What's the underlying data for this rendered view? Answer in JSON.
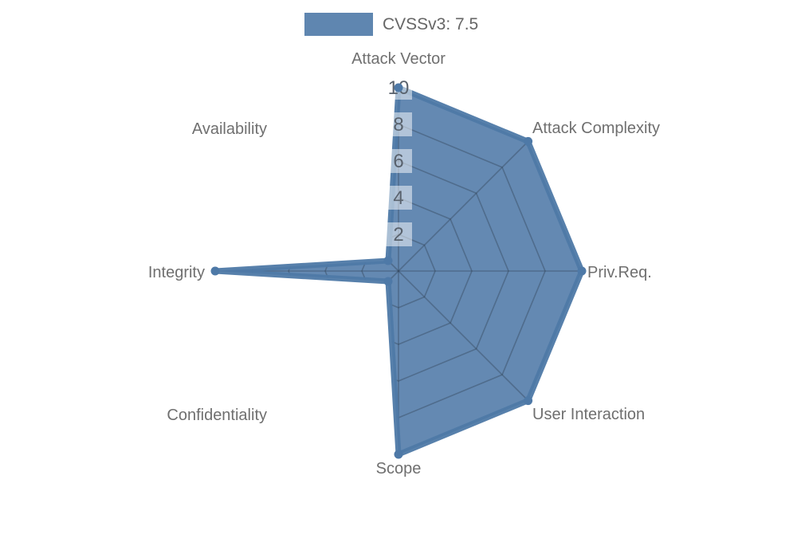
{
  "legend": {
    "items": [
      {
        "label": "CVSSv3: 7.5",
        "color": "#4e79a7"
      }
    ]
  },
  "chart_data": {
    "type": "radar",
    "title": "",
    "legend_position": "top",
    "grid": "polygon",
    "categories": [
      "Attack Vector",
      "Attack Complexity",
      "Priv.Req.",
      "User Interaction",
      "Scope",
      "Confidentiality",
      "Integrity",
      "Availability"
    ],
    "series": [
      {
        "name": "CVSSv3: 7.5",
        "values": [
          10,
          10,
          10,
          10,
          10,
          0,
          10,
          0
        ]
      }
    ],
    "radial_ticks": [
      2,
      4,
      6,
      8,
      10
    ],
    "range": [
      0,
      10
    ],
    "colors": {
      "series": "#4e79a7",
      "fill_opacity": 0.88,
      "axis_label": "#6f6f6f",
      "tick_label": "#59626d",
      "tick_box": "#ffffff",
      "grid_line": "#2d3c50",
      "legend_text": "#666666"
    }
  }
}
